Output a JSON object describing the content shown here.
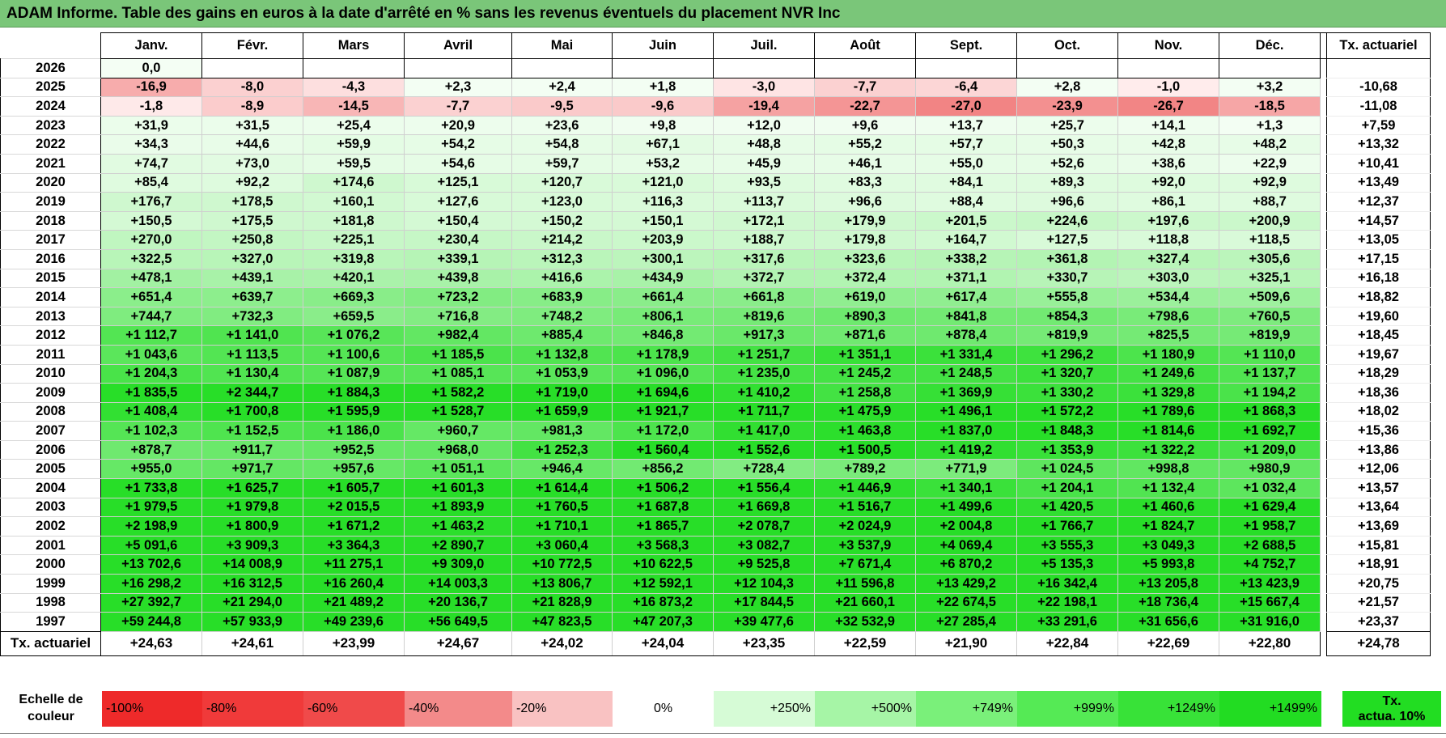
{
  "title": "ADAM Informe. Table des gains en euros à la date d'arrêté en % sans les revenus éventuels du placement NVR Inc",
  "months": [
    "Janv.",
    "Févr.",
    "Mars",
    "Avril",
    "Mai",
    "Juin",
    "Juil.",
    "Août",
    "Sept.",
    "Oct.",
    "Nov.",
    "Déc."
  ],
  "actuarial_header": "Tx. actuariel",
  "rows": [
    {
      "year": "2026",
      "values": [
        "0,0",
        "",
        "",
        "",
        "",
        "",
        "",
        "",
        "",
        "",
        "",
        ""
      ],
      "actuarial": ""
    },
    {
      "year": "2025",
      "values": [
        "-16,9",
        "-8,0",
        "-4,3",
        "+2,3",
        "+2,4",
        "+1,8",
        "-3,0",
        "-7,7",
        "-6,4",
        "+2,8",
        "-1,0",
        "+3,2"
      ],
      "actuarial": "-10,68"
    },
    {
      "year": "2024",
      "values": [
        "-1,8",
        "-8,9",
        "-14,5",
        "-7,7",
        "-9,5",
        "-9,6",
        "-19,4",
        "-22,7",
        "-27,0",
        "-23,9",
        "-26,7",
        "-18,5"
      ],
      "actuarial": "-11,08"
    },
    {
      "year": "2023",
      "values": [
        "+31,9",
        "+31,5",
        "+25,4",
        "+20,9",
        "+23,6",
        "+9,8",
        "+12,0",
        "+9,6",
        "+13,7",
        "+25,7",
        "+14,1",
        "+1,3"
      ],
      "actuarial": "+7,59"
    },
    {
      "year": "2022",
      "values": [
        "+34,3",
        "+44,6",
        "+59,9",
        "+54,2",
        "+54,8",
        "+67,1",
        "+48,8",
        "+55,2",
        "+57,7",
        "+50,3",
        "+42,8",
        "+48,2"
      ],
      "actuarial": "+13,32"
    },
    {
      "year": "2021",
      "values": [
        "+74,7",
        "+73,0",
        "+59,5",
        "+54,6",
        "+59,7",
        "+53,2",
        "+45,9",
        "+46,1",
        "+55,0",
        "+52,6",
        "+38,6",
        "+22,9"
      ],
      "actuarial": "+10,41"
    },
    {
      "year": "2020",
      "values": [
        "+85,4",
        "+92,2",
        "+174,6",
        "+125,1",
        "+120,7",
        "+121,0",
        "+93,5",
        "+83,3",
        "+84,1",
        "+89,3",
        "+92,0",
        "+92,9"
      ],
      "actuarial": "+13,49"
    },
    {
      "year": "2019",
      "values": [
        "+176,7",
        "+178,5",
        "+160,1",
        "+127,6",
        "+123,0",
        "+116,3",
        "+113,7",
        "+96,6",
        "+88,4",
        "+96,6",
        "+86,1",
        "+88,7"
      ],
      "actuarial": "+12,37"
    },
    {
      "year": "2018",
      "values": [
        "+150,5",
        "+175,5",
        "+181,8",
        "+150,4",
        "+150,2",
        "+150,1",
        "+172,1",
        "+179,9",
        "+201,5",
        "+224,6",
        "+197,6",
        "+200,9"
      ],
      "actuarial": "+14,57"
    },
    {
      "year": "2017",
      "values": [
        "+270,0",
        "+250,8",
        "+225,1",
        "+230,4",
        "+214,2",
        "+203,9",
        "+188,7",
        "+179,8",
        "+164,7",
        "+127,5",
        "+118,8",
        "+118,5"
      ],
      "actuarial": "+13,05"
    },
    {
      "year": "2016",
      "values": [
        "+322,5",
        "+327,0",
        "+319,8",
        "+339,1",
        "+312,3",
        "+300,1",
        "+317,6",
        "+323,6",
        "+338,2",
        "+361,8",
        "+327,4",
        "+305,6"
      ],
      "actuarial": "+17,15"
    },
    {
      "year": "2015",
      "values": [
        "+478,1",
        "+439,1",
        "+420,1",
        "+439,8",
        "+416,6",
        "+434,9",
        "+372,7",
        "+372,4",
        "+371,1",
        "+330,7",
        "+303,0",
        "+325,1"
      ],
      "actuarial": "+16,18"
    },
    {
      "year": "2014",
      "values": [
        "+651,4",
        "+639,7",
        "+669,3",
        "+723,2",
        "+683,9",
        "+661,4",
        "+661,8",
        "+619,0",
        "+617,4",
        "+555,8",
        "+534,4",
        "+509,6"
      ],
      "actuarial": "+18,82"
    },
    {
      "year": "2013",
      "values": [
        "+744,7",
        "+732,3",
        "+659,5",
        "+716,8",
        "+748,2",
        "+806,1",
        "+819,6",
        "+890,3",
        "+841,8",
        "+854,3",
        "+798,6",
        "+760,5"
      ],
      "actuarial": "+19,60"
    },
    {
      "year": "2012",
      "values": [
        "+1 112,7",
        "+1 141,0",
        "+1 076,2",
        "+982,4",
        "+885,4",
        "+846,8",
        "+917,3",
        "+871,6",
        "+878,4",
        "+819,9",
        "+825,5",
        "+819,9"
      ],
      "actuarial": "+18,45"
    },
    {
      "year": "2011",
      "values": [
        "+1 043,6",
        "+1 113,5",
        "+1 100,6",
        "+1 185,5",
        "+1 132,8",
        "+1 178,9",
        "+1 251,7",
        "+1 351,1",
        "+1 331,4",
        "+1 296,2",
        "+1 180,9",
        "+1 110,0"
      ],
      "actuarial": "+19,67"
    },
    {
      "year": "2010",
      "values": [
        "+1 204,3",
        "+1 130,4",
        "+1 087,9",
        "+1 085,1",
        "+1 053,9",
        "+1 096,0",
        "+1 235,0",
        "+1 245,2",
        "+1 248,5",
        "+1 320,7",
        "+1 249,6",
        "+1 137,7"
      ],
      "actuarial": "+18,29"
    },
    {
      "year": "2009",
      "values": [
        "+1 835,5",
        "+2 344,7",
        "+1 884,3",
        "+1 582,2",
        "+1 719,0",
        "+1 694,6",
        "+1 410,2",
        "+1 258,8",
        "+1 369,9",
        "+1 330,2",
        "+1 329,8",
        "+1 194,2"
      ],
      "actuarial": "+18,36"
    },
    {
      "year": "2008",
      "values": [
        "+1 408,4",
        "+1 700,8",
        "+1 595,9",
        "+1 528,7",
        "+1 659,9",
        "+1 921,7",
        "+1 711,7",
        "+1 475,9",
        "+1 496,1",
        "+1 572,2",
        "+1 789,6",
        "+1 868,3"
      ],
      "actuarial": "+18,02"
    },
    {
      "year": "2007",
      "values": [
        "+1 102,3",
        "+1 152,5",
        "+1 186,0",
        "+960,7",
        "+981,3",
        "+1 172,0",
        "+1 417,0",
        "+1 463,8",
        "+1 837,0",
        "+1 848,3",
        "+1 814,6",
        "+1 692,7"
      ],
      "actuarial": "+15,36"
    },
    {
      "year": "2006",
      "values": [
        "+878,7",
        "+911,7",
        "+952,5",
        "+968,0",
        "+1 252,3",
        "+1 560,4",
        "+1 552,6",
        "+1 500,5",
        "+1 419,2",
        "+1 353,9",
        "+1 322,2",
        "+1 209,0"
      ],
      "actuarial": "+13,86"
    },
    {
      "year": "2005",
      "values": [
        "+955,0",
        "+971,7",
        "+957,6",
        "+1 051,1",
        "+946,4",
        "+856,2",
        "+728,4",
        "+789,2",
        "+771,9",
        "+1 024,5",
        "+998,8",
        "+980,9"
      ],
      "actuarial": "+12,06"
    },
    {
      "year": "2004",
      "values": [
        "+1 733,8",
        "+1 625,7",
        "+1 605,7",
        "+1 601,3",
        "+1 614,4",
        "+1 506,2",
        "+1 556,4",
        "+1 446,9",
        "+1 340,1",
        "+1 204,1",
        "+1 132,4",
        "+1 032,4"
      ],
      "actuarial": "+13,57"
    },
    {
      "year": "2003",
      "values": [
        "+1 979,5",
        "+1 979,8",
        "+2 015,5",
        "+1 893,9",
        "+1 760,5",
        "+1 687,8",
        "+1 669,8",
        "+1 516,7",
        "+1 499,6",
        "+1 420,5",
        "+1 460,6",
        "+1 629,4"
      ],
      "actuarial": "+13,64"
    },
    {
      "year": "2002",
      "values": [
        "+2 198,9",
        "+1 800,9",
        "+1 671,2",
        "+1 463,2",
        "+1 710,1",
        "+1 865,7",
        "+2 078,7",
        "+2 024,9",
        "+2 004,8",
        "+1 766,7",
        "+1 824,7",
        "+1 958,7"
      ],
      "actuarial": "+13,69"
    },
    {
      "year": "2001",
      "values": [
        "+5 091,6",
        "+3 909,3",
        "+3 364,3",
        "+2 890,7",
        "+3 060,4",
        "+3 568,3",
        "+3 082,7",
        "+3 537,9",
        "+4 069,4",
        "+3 555,3",
        "+3 049,3",
        "+2 688,5"
      ],
      "actuarial": "+15,81"
    },
    {
      "year": "2000",
      "values": [
        "+13 702,6",
        "+14 008,9",
        "+11 275,1",
        "+9 309,0",
        "+10 772,5",
        "+10 622,5",
        "+9 525,8",
        "+7 671,4",
        "+6 870,2",
        "+5 135,3",
        "+5 993,8",
        "+4 752,7"
      ],
      "actuarial": "+18,91"
    },
    {
      "year": "1999",
      "values": [
        "+16 298,2",
        "+16 312,5",
        "+16 260,4",
        "+14 003,3",
        "+13 806,7",
        "+12 592,1",
        "+12 104,3",
        "+11 596,8",
        "+13 429,2",
        "+16 342,4",
        "+13 205,8",
        "+13 423,9"
      ],
      "actuarial": "+20,75"
    },
    {
      "year": "1998",
      "values": [
        "+27 392,7",
        "+21 294,0",
        "+21 489,2",
        "+20 136,7",
        "+21 828,9",
        "+16 873,2",
        "+17 844,5",
        "+21 660,1",
        "+22 674,5",
        "+22 198,1",
        "+18 736,4",
        "+15 667,4"
      ],
      "actuarial": "+21,57"
    },
    {
      "year": "1997",
      "values": [
        "+59 244,8",
        "+57 933,9",
        "+49 239,6",
        "+56 649,5",
        "+47 823,5",
        "+47 207,3",
        "+39 477,6",
        "+32 532,9",
        "+27 285,4",
        "+33 291,6",
        "+31 656,6",
        "+31 916,0"
      ],
      "actuarial": "+23,37"
    }
  ],
  "footer": {
    "label": "Tx. actuariel",
    "values": [
      "+24,63",
      "+24,61",
      "+23,99",
      "+24,67",
      "+24,02",
      "+24,04",
      "+23,35",
      "+22,59",
      "+21,90",
      "+22,84",
      "+22,69",
      "+22,80"
    ],
    "total": "+24,78"
  },
  "legend": {
    "label_line1": "Echelle de",
    "label_line2": "couleur",
    "items": [
      {
        "text": "-100%",
        "color": "#ee2a2a",
        "align": "left"
      },
      {
        "text": "-80%",
        "color": "#f03a3a",
        "align": "left"
      },
      {
        "text": "-60%",
        "color": "#f04a4a",
        "align": "left"
      },
      {
        "text": "-40%",
        "color": "#f38a8a",
        "align": "left"
      },
      {
        "text": "-20%",
        "color": "#f9c2c2",
        "align": "left"
      },
      {
        "text": "0%",
        "color": "#ffffff",
        "align": "center"
      },
      {
        "text": "+250%",
        "color": "#d6fbd6",
        "align": "right"
      },
      {
        "text": "+500%",
        "color": "#a6f5a6",
        "align": "right"
      },
      {
        "text": "+749%",
        "color": "#7af07a",
        "align": "right"
      },
      {
        "text": "+999%",
        "color": "#55ea55",
        "align": "right"
      },
      {
        "text": "+1249%",
        "color": "#38e238",
        "align": "right"
      },
      {
        "text": "+1499%",
        "color": "#22dc22",
        "align": "right"
      }
    ],
    "last_line1": "Tx.",
    "last_line2": "actua. 10%",
    "last_color": "#22dd22"
  }
}
